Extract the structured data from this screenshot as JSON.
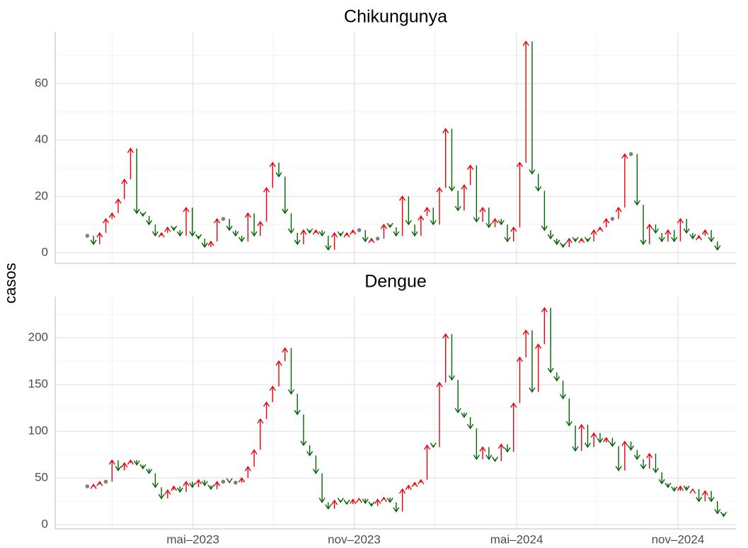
{
  "chart_data": {
    "type": "arrow",
    "ylabel": "casos",
    "grid": true,
    "up_color": "#e8000b",
    "down_color": "#006400",
    "flat_color": "#808080",
    "x": [
      1,
      2,
      3,
      4,
      5,
      6,
      7,
      8,
      9,
      10,
      11,
      12,
      13,
      14,
      15,
      16,
      17,
      18,
      19,
      20,
      21,
      22,
      23,
      24,
      25,
      26,
      27,
      28,
      29,
      30,
      31,
      32,
      33,
      34,
      35,
      36,
      37,
      38,
      39,
      40,
      41,
      42,
      43,
      44,
      45,
      46,
      47,
      48,
      49,
      50,
      51,
      52,
      53,
      54,
      55,
      56,
      57,
      58,
      59,
      60,
      61,
      62,
      63,
      64,
      65,
      66,
      67,
      68,
      69,
      70,
      71,
      72,
      73,
      74,
      75,
      76,
      77,
      78,
      79,
      80,
      81,
      82,
      83,
      84,
      85,
      86,
      87,
      88,
      89,
      90,
      91,
      92,
      93,
      94,
      95,
      96,
      97,
      98,
      99,
      100,
      101,
      102,
      103,
      104
    ],
    "xlim": [
      -4.2,
      106
    ],
    "xticks": [
      {
        "value": 18.1,
        "label": "mai–2023"
      },
      {
        "value": 44.2,
        "label": "nov–2023"
      },
      {
        "value": 70.5,
        "label": "mai–2024"
      },
      {
        "value": 96.6,
        "label": "nov–2024"
      }
    ],
    "panels": [
      {
        "title": "Chikungunya",
        "ylim": [
          -3.8,
          78.4
        ],
        "yticks": [
          0,
          20,
          40,
          60
        ],
        "values": [
          6,
          3,
          7,
          12,
          14,
          19,
          26,
          37,
          14,
          13,
          10,
          6,
          7,
          9,
          8,
          6,
          16,
          6,
          5,
          2,
          4,
          12,
          12,
          8,
          6,
          4,
          14,
          6,
          11,
          23,
          32,
          27,
          14,
          7,
          3,
          8,
          7,
          8,
          6,
          1,
          7,
          6,
          7,
          8,
          8,
          4,
          5,
          5,
          10,
          9,
          6,
          20,
          10,
          6,
          13,
          16,
          10,
          23,
          44,
          22,
          15,
          24,
          31,
          11,
          16,
          9,
          12,
          10,
          4,
          9,
          32,
          75,
          28,
          22,
          8,
          5,
          3,
          2,
          5,
          4,
          5,
          4,
          8,
          9,
          12,
          12,
          16,
          35,
          35,
          17,
          3,
          10,
          7,
          4,
          8,
          4,
          12,
          7,
          5,
          6,
          8,
          4,
          1,
          null
        ]
      },
      {
        "title": "Dengue",
        "ylim": [
          -4.5,
          244
        ],
        "yticks": [
          0,
          50,
          100,
          150,
          200
        ],
        "values": [
          41,
          43,
          46,
          46,
          69,
          58,
          66,
          69,
          64,
          60,
          55,
          40,
          28,
          37,
          41,
          35,
          46,
          40,
          48,
          42,
          38,
          46,
          46,
          45,
          45,
          50,
          62,
          80,
          113,
          131,
          148,
          175,
          189,
          140,
          118,
          85,
          74,
          55,
          24,
          17,
          26,
          24,
          22,
          27,
          28,
          23,
          20,
          27,
          29,
          24,
          14,
          38,
          42,
          45,
          48,
          85,
          83,
          152,
          204,
          155,
          120,
          115,
          103,
          70,
          83,
          70,
          68,
          86,
          78,
          130,
          179,
          208,
          142,
          193,
          232,
          163,
          154,
          135,
          106,
          79,
          107,
          83,
          98,
          88,
          93,
          84,
          58,
          89,
          80,
          70,
          60,
          76,
          56,
          44,
          40,
          36,
          41,
          37,
          38,
          25,
          36,
          25,
          12,
          9
        ]
      }
    ]
  }
}
